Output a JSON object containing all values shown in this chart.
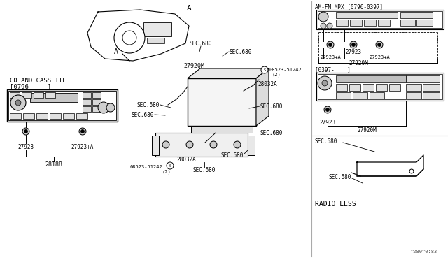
{
  "bg_color": "#ffffff",
  "line_color": "#000000",
  "left_label1": "CD AND CASSETTE",
  "left_label2": "[0796-    ]",
  "amfm_label": "AM-FM MPX [0796-0397]",
  "radio97_label": "[0397-    ]",
  "radio_less_label": "RADIO LESS",
  "watermark": "^280^0:83",
  "view_label": "A"
}
